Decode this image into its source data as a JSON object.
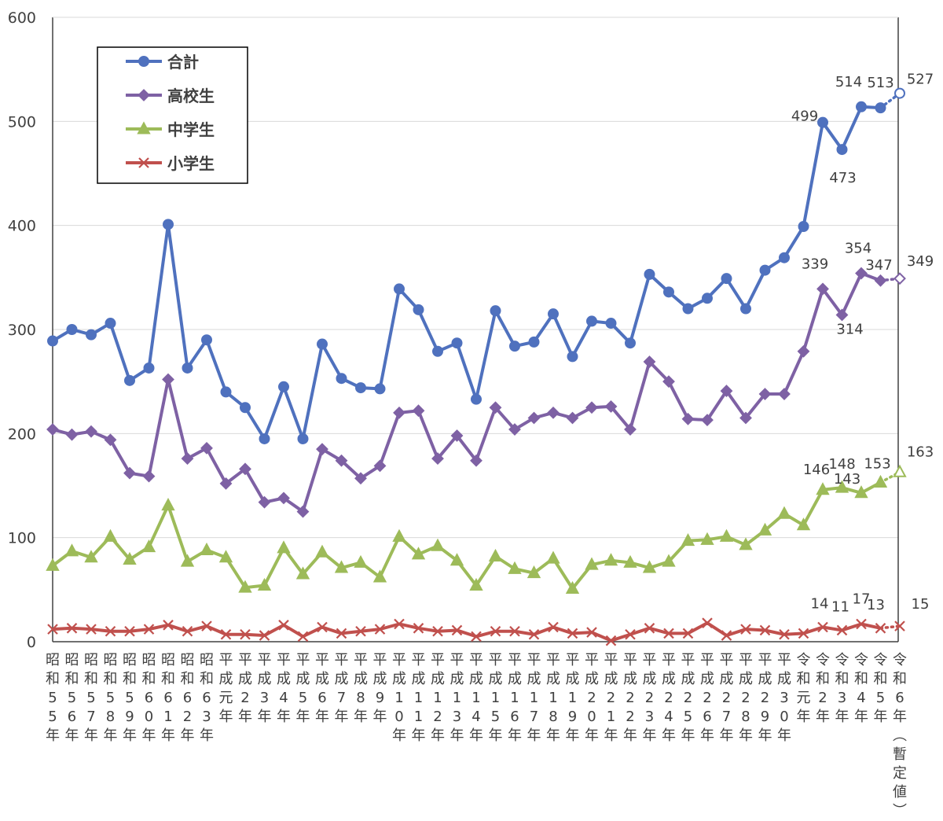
{
  "chart_data": {
    "type": "line",
    "title": "",
    "xlabel": "",
    "ylabel": "",
    "ylim": [
      0,
      600
    ],
    "yticks": [
      0,
      100,
      200,
      300,
      400,
      500,
      600
    ],
    "grid": true,
    "legend_position": "top-left",
    "categories": [
      "昭和55年",
      "昭和56年",
      "昭和57年",
      "昭和58年",
      "昭和59年",
      "昭和60年",
      "昭和61年",
      "昭和62年",
      "昭和63年",
      "平成元年",
      "平成2年",
      "平成3年",
      "平成4年",
      "平成5年",
      "平成6年",
      "平成7年",
      "平成8年",
      "平成9年",
      "平成10年",
      "平成11年",
      "平成12年",
      "平成13年",
      "平成14年",
      "平成15年",
      "平成16年",
      "平成17年",
      "平成18年",
      "平成19年",
      "平成20年",
      "平成21年",
      "平成22年",
      "平成23年",
      "平成24年",
      "平成25年",
      "平成26年",
      "平成27年",
      "平成28年",
      "平成29年",
      "平成30年",
      "令和元年",
      "令和2年",
      "令和3年",
      "令和4年",
      "令和5年",
      "令和6年（暫定値）"
    ],
    "series": [
      {
        "name": "合計",
        "color": "#4F71BE",
        "marker": "circle",
        "values": [
          289,
          300,
          295,
          306,
          251,
          263,
          401,
          263,
          290,
          240,
          225,
          195,
          245,
          195,
          286,
          253,
          244,
          243,
          339,
          319,
          279,
          287,
          233,
          318,
          284,
          288,
          315,
          274,
          308,
          306,
          287,
          353,
          336,
          320,
          330,
          349,
          320,
          357,
          369,
          399,
          499,
          473,
          514,
          513,
          527
        ],
        "data_labels": {
          "40": "499",
          "41": "473",
          "42": "514",
          "43": "513",
          "44": "527"
        }
      },
      {
        "name": "高校生",
        "color": "#7E61A4",
        "marker": "diamond",
        "values": [
          204,
          199,
          202,
          194,
          162,
          159,
          252,
          176,
          186,
          152,
          166,
          134,
          138,
          125,
          185,
          174,
          157,
          169,
          220,
          222,
          176,
          198,
          174,
          225,
          204,
          215,
          220,
          215,
          225,
          226,
          204,
          269,
          250,
          214,
          213,
          241,
          215,
          238,
          238,
          279,
          339,
          314,
          354,
          347,
          349
        ],
        "data_labels": {
          "40": "339",
          "41": "314",
          "42": "354",
          "43": "347",
          "44": "349"
        }
      },
      {
        "name": "中学生",
        "color": "#9DBB59",
        "marker": "triangle",
        "values": [
          73,
          87,
          81,
          101,
          79,
          91,
          131,
          77,
          88,
          81,
          52,
          54,
          90,
          65,
          86,
          71,
          76,
          62,
          101,
          84,
          92,
          78,
          54,
          82,
          70,
          66,
          80,
          51,
          74,
          78,
          76,
          71,
          77,
          97,
          98,
          101,
          93,
          107,
          123,
          112,
          146,
          148,
          143,
          153,
          163
        ],
        "data_labels": {
          "40": "146",
          "41": "148",
          "42": "143",
          "43": "153",
          "44": "163"
        }
      },
      {
        "name": "小学生",
        "color": "#C0504D",
        "marker": "x",
        "values": [
          12,
          13,
          12,
          10,
          10,
          12,
          16,
          10,
          15,
          7,
          7,
          6,
          16,
          5,
          14,
          8,
          10,
          12,
          17,
          13,
          10,
          11,
          5,
          10,
          10,
          7,
          14,
          8,
          9,
          1,
          7,
          13,
          8,
          8,
          18,
          6,
          12,
          11,
          7,
          8,
          14,
          11,
          17,
          13,
          15
        ],
        "data_labels": {
          "40": "14",
          "41": "11",
          "42": "17",
          "43": "13",
          "44": "15"
        }
      }
    ]
  }
}
